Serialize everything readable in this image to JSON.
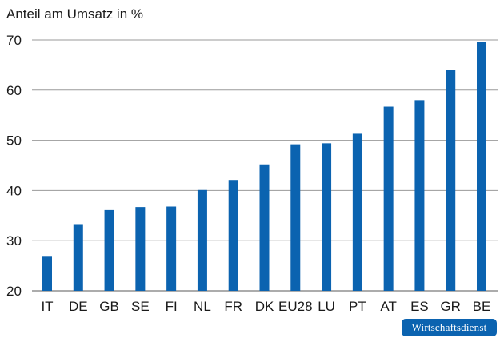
{
  "chart_data": {
    "type": "bar",
    "ylabel": "Anteil am Umsatz in %",
    "categories": [
      "IT",
      "DE",
      "GB",
      "SE",
      "FI",
      "NL",
      "FR",
      "DK",
      "EU28",
      "LU",
      "PT",
      "AT",
      "ES",
      "GR",
      "BE"
    ],
    "values": [
      26.8,
      33.3,
      36.1,
      36.7,
      36.8,
      40.1,
      42.1,
      45.2,
      49.2,
      49.4,
      51.3,
      56.7,
      58.0,
      64.0,
      69.6
    ],
    "ylim": [
      20,
      70
    ],
    "yticks": [
      20,
      30,
      40,
      50,
      60,
      70
    ],
    "grid": true,
    "bar_color": "#0b63b0"
  },
  "watermark": "Wirtschaftsdienst"
}
